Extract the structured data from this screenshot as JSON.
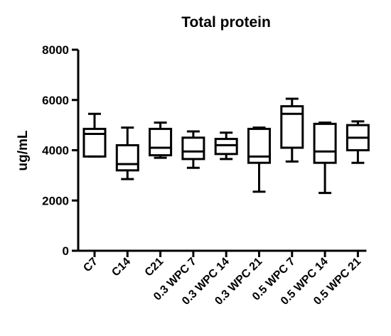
{
  "chart_data": {
    "type": "boxplot",
    "title": "Total protein",
    "xlabel": "",
    "ylabel": "ug/mL",
    "ylim": [
      0,
      8000
    ],
    "yticks": [
      0,
      2000,
      4000,
      6000,
      8000
    ],
    "ytick_labels": [
      "0",
      "2000",
      "4000",
      "6000",
      "8000"
    ],
    "grid": false,
    "categories": [
      "C7",
      "C14",
      "C21",
      "0.3 WPC 7",
      "0.3 WPC 14",
      "0.3 WPC 21",
      "0.5 WPC 7",
      "0.5 WPC 14",
      "0.5 WPC 21"
    ],
    "boxes": [
      {
        "min": 3750,
        "q1": 3750,
        "median": 4650,
        "q3": 4850,
        "max": 5450
      },
      {
        "min": 2850,
        "q1": 3200,
        "median": 3450,
        "q3": 4200,
        "max": 4900
      },
      {
        "min": 3700,
        "q1": 3800,
        "median": 4100,
        "q3": 4850,
        "max": 5100
      },
      {
        "min": 3300,
        "q1": 3650,
        "median": 3950,
        "q3": 4500,
        "max": 4750
      },
      {
        "min": 3650,
        "q1": 3850,
        "median": 4200,
        "q3": 4450,
        "max": 4700
      },
      {
        "min": 2350,
        "q1": 3500,
        "median": 3750,
        "q3": 4850,
        "max": 4900
      },
      {
        "min": 3550,
        "q1": 4100,
        "median": 5450,
        "q3": 5750,
        "max": 6050
      },
      {
        "min": 2300,
        "q1": 3500,
        "median": 3950,
        "q3": 5050,
        "max": 5100
      },
      {
        "min": 3500,
        "q1": 4000,
        "median": 4500,
        "q3": 5000,
        "max": 5150
      }
    ]
  }
}
